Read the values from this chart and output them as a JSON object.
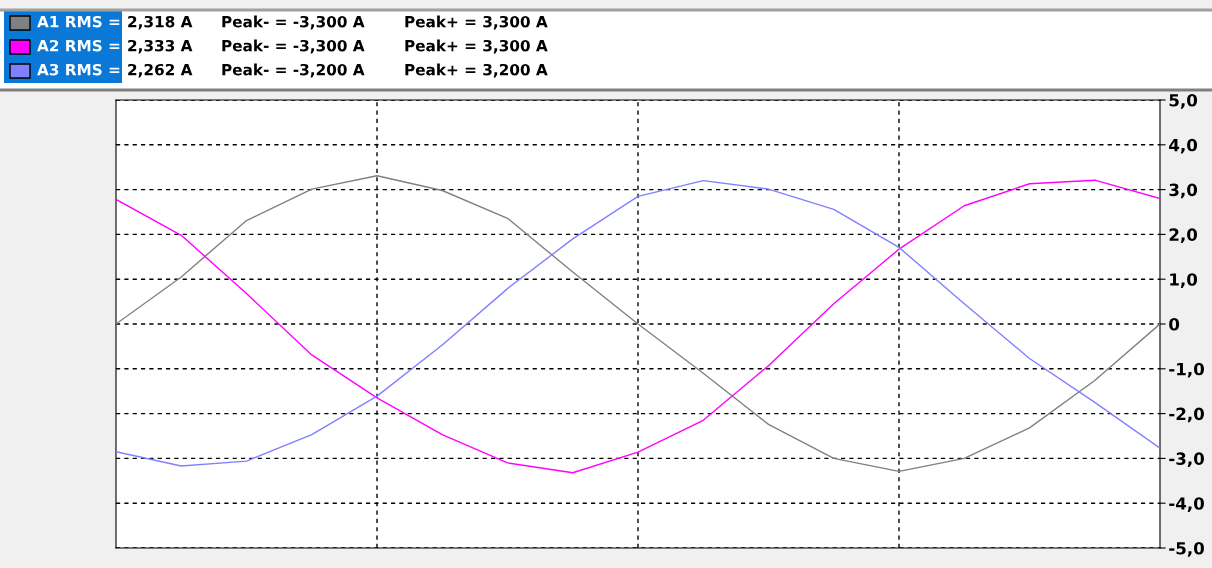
{
  "chart_data": {
    "type": "line",
    "categories": [
      null,
      null,
      null,
      null,
      null,
      null,
      null,
      null,
      null,
      null,
      null,
      null,
      null,
      null,
      null,
      null,
      null
    ],
    "series": [
      {
        "name": "A1 RMS =",
        "color": "#808080",
        "values": [
          0,
          1.05,
          2.31,
          3.01,
          3.31,
          2.98,
          2.36,
          1.16,
          0,
          -1.1,
          -2.24,
          -3.0,
          -3.29,
          -3.0,
          -2.32,
          -1.26,
          0
        ]
      },
      {
        "name": "A2 RMS =",
        "color": "#ff00ff",
        "values": [
          2.78,
          1.98,
          0.68,
          -0.69,
          -1.65,
          -2.47,
          -3.1,
          -3.32,
          -2.86,
          -2.15,
          -0.93,
          0.45,
          1.67,
          2.64,
          3.13,
          3.21,
          2.8
        ]
      },
      {
        "name": "A3 RMS =",
        "color": "#8080ff",
        "values": [
          -2.85,
          -3.17,
          -3.06,
          -2.47,
          -1.61,
          -0.47,
          0.79,
          1.9,
          2.85,
          3.2,
          3.01,
          2.56,
          1.71,
          0.45,
          -0.77,
          -1.75,
          -2.77
        ]
      }
    ],
    "annotations": [
      "2,318 A",
      "Peak- = -3,300 A",
      "Peak+ = 3,300 A",
      "2,333 A",
      "Peak- = -3,300 A",
      "Peak+ = 3,300 A",
      "2,262 A",
      "Peak- = -3,200 A",
      "Peak+ = 3,200 A"
    ],
    "ylim": [
      -5,
      5
    ],
    "yticks": [
      {
        "value": -5,
        "label": "-5,0"
      },
      {
        "value": -4,
        "label": "-4,0"
      },
      {
        "value": -3,
        "label": "-3,0"
      },
      {
        "value": -2,
        "label": "-2,0"
      },
      {
        "value": -1,
        "label": "-1,0"
      },
      {
        "value": 0,
        "label": "0"
      },
      {
        "value": 1,
        "label": "1,0"
      },
      {
        "value": 2,
        "label": "2,0"
      },
      {
        "value": 3,
        "label": "3,0"
      },
      {
        "value": 4,
        "label": "4,0"
      },
      {
        "value": 5,
        "label": "5,0"
      }
    ],
    "tick_labels": "y",
    "grid": true,
    "legend": "top",
    "line_style": "solid",
    "marker": "none"
  }
}
